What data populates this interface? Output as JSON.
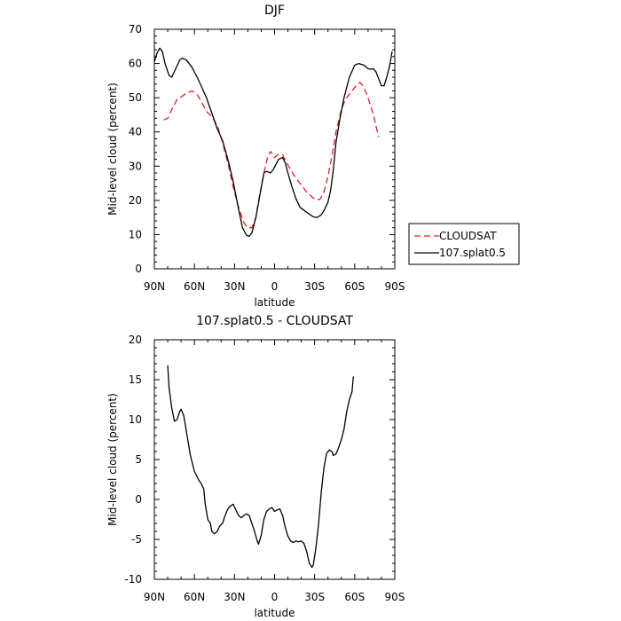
{
  "chart_data": [
    {
      "type": "line",
      "title": "DJF",
      "xlabel": "latitude",
      "ylabel": "Mid-level cloud (percent)",
      "xlim": [
        90,
        -90
      ],
      "ylim": [
        0,
        70
      ],
      "x_ticks": [
        {
          "value": 90,
          "label": "90N"
        },
        {
          "value": 60,
          "label": "60N"
        },
        {
          "value": 30,
          "label": "30N"
        },
        {
          "value": 0,
          "label": "0"
        },
        {
          "value": -30,
          "label": "30S"
        },
        {
          "value": -60,
          "label": "60S"
        },
        {
          "value": -90,
          "label": "90S"
        }
      ],
      "y_ticks": [
        0,
        10,
        20,
        30,
        40,
        50,
        60,
        70
      ],
      "grid": false,
      "legend_position": "outside-right",
      "series": [
        {
          "name": "CLOUDSAT",
          "color": "#e02020",
          "dash": "dashed",
          "points": [
            [
              83,
              43.5
            ],
            [
              80,
              44
            ],
            [
              77,
              46.5
            ],
            [
              73,
              49.5
            ],
            [
              69,
              50.5
            ],
            [
              66,
              51.3
            ],
            [
              62,
              52
            ],
            [
              58,
              51
            ],
            [
              55,
              49
            ],
            [
              51,
              46
            ],
            [
              47,
              44.5
            ],
            [
              43,
              42
            ],
            [
              39,
              37
            ],
            [
              35,
              31
            ],
            [
              31,
              24
            ],
            [
              27,
              18
            ],
            [
              23,
              13.5
            ],
            [
              20,
              12
            ],
            [
              17,
              12
            ],
            [
              14,
              15
            ],
            [
              11,
              22
            ],
            [
              8,
              28
            ],
            [
              5,
              33
            ],
            [
              3,
              34.3
            ],
            [
              0,
              32.5
            ],
            [
              -3,
              33.5
            ],
            [
              -6,
              33.3
            ],
            [
              -9,
              31
            ],
            [
              -12,
              29
            ],
            [
              -16,
              26.5
            ],
            [
              -20,
              24.5
            ],
            [
              -24,
              22.5
            ],
            [
              -28,
              21
            ],
            [
              -31,
              20.2
            ],
            [
              -34,
              20.3
            ],
            [
              -37,
              22.5
            ],
            [
              -40,
              27
            ],
            [
              -43,
              33
            ],
            [
              -46,
              40
            ],
            [
              -50,
              46.5
            ],
            [
              -53,
              49.5
            ],
            [
              -56,
              51
            ],
            [
              -59,
              52.5
            ],
            [
              -62,
              54
            ],
            [
              -64,
              54.5
            ],
            [
              -67,
              53
            ],
            [
              -70,
              50
            ],
            [
              -74,
              45
            ],
            [
              -77,
              40
            ],
            [
              -78,
              38.5
            ]
          ]
        },
        {
          "name": "107.splat0.5",
          "color": "#000000",
          "dash": "solid",
          "points": [
            [
              90,
              60.5
            ],
            [
              88,
              63
            ],
            [
              86,
              64.5
            ],
            [
              84,
              63.5
            ],
            [
              82,
              60
            ],
            [
              79,
              56.5
            ],
            [
              77,
              56
            ],
            [
              74,
              58.5
            ],
            [
              71,
              61
            ],
            [
              69,
              61.6
            ],
            [
              66,
              61
            ],
            [
              62,
              59
            ],
            [
              58,
              56
            ],
            [
              55,
              53.5
            ],
            [
              51,
              50
            ],
            [
              47,
              45.5
            ],
            [
              43,
              41
            ],
            [
              39,
              37.5
            ],
            [
              35,
              32
            ],
            [
              31,
              25.5
            ],
            [
              27,
              17.5
            ],
            [
              24,
              12
            ],
            [
              21,
              9.8
            ],
            [
              19,
              9.5
            ],
            [
              17,
              10.5
            ],
            [
              14,
              15
            ],
            [
              11,
              21.5
            ],
            [
              8,
              28
            ],
            [
              6,
              28.5
            ],
            [
              3,
              28
            ],
            [
              1,
              29
            ],
            [
              -1,
              30.5
            ],
            [
              -3,
              32
            ],
            [
              -6,
              32.5
            ],
            [
              -8,
              31
            ],
            [
              -10,
              28
            ],
            [
              -13,
              24
            ],
            [
              -16,
              20.5
            ],
            [
              -19,
              18
            ],
            [
              -23,
              16.8
            ],
            [
              -26,
              16
            ],
            [
              -29,
              15.2
            ],
            [
              -32,
              15
            ],
            [
              -35,
              15.8
            ],
            [
              -37,
              17
            ],
            [
              -40,
              19.5
            ],
            [
              -42,
              23
            ],
            [
              -44,
              29
            ],
            [
              -46,
              37
            ],
            [
              -49,
              44
            ],
            [
              -52,
              50
            ],
            [
              -56,
              56
            ],
            [
              -60,
              59.5
            ],
            [
              -63,
              60
            ],
            [
              -67,
              59.5
            ],
            [
              -70,
              58.5
            ],
            [
              -72,
              58.3
            ],
            [
              -74,
              58.5
            ],
            [
              -76,
              57.5
            ],
            [
              -78,
              55.5
            ],
            [
              -80,
              53.5
            ],
            [
              -82,
              53.5
            ],
            [
              -84,
              56
            ],
            [
              -86,
              59
            ],
            [
              -88,
              63.5
            ]
          ]
        }
      ]
    },
    {
      "type": "line",
      "title": "107.splat0.5 - CLOUDSAT",
      "xlabel": "latitude",
      "ylabel": "Mid-level cloud (percent)",
      "xlim": [
        90,
        -90
      ],
      "ylim": [
        -10,
        20
      ],
      "x_ticks": [
        {
          "value": 90,
          "label": "90N"
        },
        {
          "value": 60,
          "label": "60N"
        },
        {
          "value": 30,
          "label": "30N"
        },
        {
          "value": 0,
          "label": "0"
        },
        {
          "value": -30,
          "label": "30S"
        },
        {
          "value": -60,
          "label": "60S"
        },
        {
          "value": -90,
          "label": "90S"
        }
      ],
      "y_ticks": [
        -10,
        -5,
        0,
        5,
        10,
        15,
        20
      ],
      "grid": false,
      "series": [
        {
          "color": "#000000",
          "dash": "solid",
          "points": [
            [
              80,
              16.8
            ],
            [
              79,
              14
            ],
            [
              77,
              11.5
            ],
            [
              75,
              9.8
            ],
            [
              73,
              10
            ],
            [
              71,
              11
            ],
            [
              70,
              11.3
            ],
            [
              68,
              10.5
            ],
            [
              66,
              8.5
            ],
            [
              63,
              5.5
            ],
            [
              60,
              3.5
            ],
            [
              57,
              2.5
            ],
            [
              55,
              2
            ],
            [
              53,
              1.3
            ],
            [
              52,
              -0.5
            ],
            [
              50,
              -2.5
            ],
            [
              48,
              -3
            ],
            [
              47,
              -4
            ],
            [
              45,
              -4.3
            ],
            [
              43,
              -4
            ],
            [
              41,
              -3.3
            ],
            [
              39,
              -3
            ],
            [
              37,
              -2
            ],
            [
              35,
              -1.2
            ],
            [
              33,
              -0.8
            ],
            [
              31,
              -0.6
            ],
            [
              29,
              -1.3
            ],
            [
              27,
              -2
            ],
            [
              25,
              -2.3
            ],
            [
              23,
              -2
            ],
            [
              21,
              -1.8
            ],
            [
              19,
              -2
            ],
            [
              17,
              -3
            ],
            [
              15,
              -4
            ],
            [
              13,
              -5.2
            ],
            [
              12,
              -5.6
            ],
            [
              10,
              -4.5
            ],
            [
              8,
              -2.5
            ],
            [
              6,
              -1.5
            ],
            [
              4,
              -1.2
            ],
            [
              2,
              -1
            ],
            [
              0,
              -1.5
            ],
            [
              -2,
              -1.3
            ],
            [
              -4,
              -1.2
            ],
            [
              -6,
              -2
            ],
            [
              -8,
              -3.5
            ],
            [
              -10,
              -4.6
            ],
            [
              -12,
              -5.2
            ],
            [
              -14,
              -5.4
            ],
            [
              -16,
              -5.2
            ],
            [
              -18,
              -5.3
            ],
            [
              -20,
              -5.2
            ],
            [
              -22,
              -5.5
            ],
            [
              -24,
              -6.5
            ],
            [
              -26,
              -8
            ],
            [
              -28,
              -8.5
            ],
            [
              -29,
              -8.2
            ],
            [
              -31,
              -6
            ],
            [
              -33,
              -3
            ],
            [
              -35,
              1
            ],
            [
              -37,
              4
            ],
            [
              -39,
              5.8
            ],
            [
              -41,
              6.2
            ],
            [
              -43,
              6
            ],
            [
              -44,
              5.5
            ],
            [
              -46,
              5.7
            ],
            [
              -48,
              6.5
            ],
            [
              -50,
              7.5
            ],
            [
              -52,
              8.8
            ],
            [
              -54,
              11
            ],
            [
              -56,
              12.5
            ],
            [
              -58,
              13.5
            ],
            [
              -59,
              15.4
            ]
          ]
        }
      ]
    }
  ]
}
